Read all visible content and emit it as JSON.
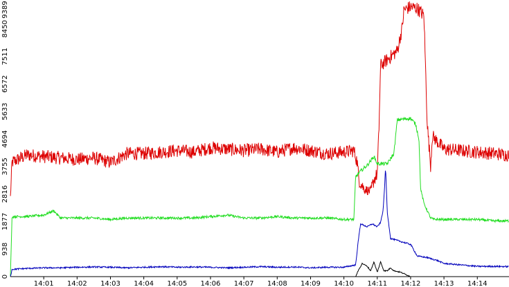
{
  "chart_data": {
    "type": "line",
    "x_categories": [
      "14:01",
      "14:02",
      "14:03",
      "14:04",
      "14:05",
      "14:06",
      "14:07",
      "14:08",
      "14:09",
      "14:10",
      "14:11",
      "14:12",
      "14:13",
      "14:14"
    ],
    "x_range_minutes": [
      0.0,
      14.95
    ],
    "x_label_minute_offsets": [
      1,
      2,
      3,
      4,
      5,
      6,
      7,
      8,
      9,
      10,
      11,
      12,
      13,
      14
    ],
    "y_ticks": [
      0,
      938,
      1877,
      2816,
      3755,
      4694,
      5633,
      6572,
      7511,
      8450,
      9389
    ],
    "ylim": [
      0,
      9389
    ],
    "grid": false,
    "legend": "none",
    "series": [
      {
        "color": "#dd0000",
        "points": [
          [
            0.0,
            2700
          ],
          [
            0.05,
            3900
          ],
          [
            0.5,
            4150
          ],
          [
            1.0,
            4100
          ],
          [
            1.5,
            4050
          ],
          [
            2.0,
            4000
          ],
          [
            2.5,
            4050
          ],
          [
            3.0,
            3900
          ],
          [
            3.5,
            4200
          ],
          [
            4.0,
            4200
          ],
          [
            4.5,
            4250
          ],
          [
            5.0,
            4300
          ],
          [
            5.5,
            4250
          ],
          [
            6.0,
            4400
          ],
          [
            6.5,
            4350
          ],
          [
            7.0,
            4300
          ],
          [
            7.5,
            4350
          ],
          [
            8.0,
            4250
          ],
          [
            8.5,
            4400
          ],
          [
            9.0,
            4300
          ],
          [
            9.5,
            4200
          ],
          [
            10.0,
            4250
          ],
          [
            10.3,
            4300
          ],
          [
            10.4,
            3900
          ],
          [
            10.45,
            3300
          ],
          [
            10.6,
            3000
          ],
          [
            10.8,
            2900
          ],
          [
            10.9,
            3300
          ],
          [
            11.0,
            3500
          ],
          [
            11.05,
            5000
          ],
          [
            11.1,
            7200
          ],
          [
            11.3,
            7400
          ],
          [
            11.6,
            7700
          ],
          [
            11.75,
            8500
          ],
          [
            11.8,
            9100
          ],
          [
            12.0,
            9200
          ],
          [
            12.2,
            9150
          ],
          [
            12.4,
            8900
          ],
          [
            12.5,
            5200
          ],
          [
            12.6,
            3800
          ],
          [
            12.65,
            4800
          ],
          [
            13.0,
            4350
          ],
          [
            13.5,
            4300
          ],
          [
            14.0,
            4250
          ],
          [
            14.5,
            4200
          ],
          [
            14.95,
            4150
          ]
        ]
      },
      {
        "color": "#22dd22",
        "points": [
          [
            0.0,
            0
          ],
          [
            0.05,
            2050
          ],
          [
            0.5,
            2050
          ],
          [
            1.0,
            2100
          ],
          [
            1.3,
            2250
          ],
          [
            1.5,
            2000
          ],
          [
            2.0,
            2000
          ],
          [
            2.5,
            2000
          ],
          [
            3.0,
            1950
          ],
          [
            3.5,
            2000
          ],
          [
            4.0,
            2000
          ],
          [
            4.5,
            2000
          ],
          [
            5.0,
            2000
          ],
          [
            5.5,
            2000
          ],
          [
            6.0,
            2050
          ],
          [
            6.5,
            2100
          ],
          [
            7.0,
            2000
          ],
          [
            7.5,
            2000
          ],
          [
            8.0,
            2050
          ],
          [
            8.5,
            2000
          ],
          [
            9.0,
            2000
          ],
          [
            9.5,
            2000
          ],
          [
            10.0,
            1950
          ],
          [
            10.3,
            1950
          ],
          [
            10.35,
            3400
          ],
          [
            10.5,
            3600
          ],
          [
            10.7,
            3800
          ],
          [
            10.9,
            4100
          ],
          [
            11.0,
            3850
          ],
          [
            11.3,
            3850
          ],
          [
            11.5,
            4200
          ],
          [
            11.6,
            5350
          ],
          [
            12.0,
            5400
          ],
          [
            12.15,
            5200
          ],
          [
            12.25,
            4700
          ],
          [
            12.3,
            3000
          ],
          [
            12.4,
            2500
          ],
          [
            12.6,
            2000
          ],
          [
            12.7,
            1950
          ],
          [
            13.0,
            1950
          ],
          [
            13.5,
            1950
          ],
          [
            14.0,
            1950
          ],
          [
            14.5,
            1900
          ],
          [
            14.95,
            1900
          ]
        ]
      },
      {
        "color": "#0000bb",
        "points": [
          [
            0.0,
            0
          ],
          [
            0.05,
            250
          ],
          [
            0.5,
            280
          ],
          [
            1.0,
            300
          ],
          [
            1.5,
            300
          ],
          [
            2.0,
            320
          ],
          [
            2.5,
            330
          ],
          [
            3.0,
            320
          ],
          [
            3.5,
            300
          ],
          [
            4.0,
            320
          ],
          [
            4.5,
            340
          ],
          [
            5.0,
            320
          ],
          [
            5.5,
            330
          ],
          [
            6.0,
            320
          ],
          [
            6.5,
            300
          ],
          [
            7.0,
            320
          ],
          [
            7.5,
            340
          ],
          [
            8.0,
            320
          ],
          [
            8.5,
            330
          ],
          [
            9.0,
            300
          ],
          [
            9.5,
            320
          ],
          [
            10.0,
            320
          ],
          [
            10.35,
            400
          ],
          [
            10.45,
            1400
          ],
          [
            10.5,
            1800
          ],
          [
            10.7,
            1700
          ],
          [
            10.85,
            1800
          ],
          [
            11.0,
            1700
          ],
          [
            11.1,
            1850
          ],
          [
            11.18,
            2300
          ],
          [
            11.25,
            3700
          ],
          [
            11.3,
            2200
          ],
          [
            11.4,
            1300
          ],
          [
            11.7,
            1200
          ],
          [
            12.0,
            1100
          ],
          [
            12.2,
            700
          ],
          [
            12.5,
            650
          ],
          [
            12.8,
            550
          ],
          [
            13.0,
            450
          ],
          [
            13.5,
            400
          ],
          [
            14.0,
            350
          ],
          [
            14.5,
            350
          ],
          [
            14.95,
            340
          ]
        ]
      },
      {
        "color": "#000000",
        "points": [
          [
            0.0,
            0
          ],
          [
            0.5,
            0
          ],
          [
            1.0,
            0
          ],
          [
            2.0,
            0
          ],
          [
            3.0,
            0
          ],
          [
            4.0,
            0
          ],
          [
            5.0,
            0
          ],
          [
            6.0,
            0
          ],
          [
            7.0,
            0
          ],
          [
            8.0,
            0
          ],
          [
            9.0,
            0
          ],
          [
            10.0,
            0
          ],
          [
            10.35,
            0
          ],
          [
            10.45,
            250
          ],
          [
            10.55,
            450
          ],
          [
            10.7,
            350
          ],
          [
            10.8,
            200
          ],
          [
            10.9,
            500
          ],
          [
            11.0,
            150
          ],
          [
            11.1,
            500
          ],
          [
            11.2,
            200
          ],
          [
            11.3,
            200
          ],
          [
            11.4,
            300
          ],
          [
            11.5,
            200
          ],
          [
            11.7,
            150
          ],
          [
            12.0,
            0
          ],
          [
            12.5,
            0
          ],
          [
            13.0,
            0
          ],
          [
            14.0,
            0
          ],
          [
            14.95,
            0
          ]
        ]
      }
    ]
  }
}
